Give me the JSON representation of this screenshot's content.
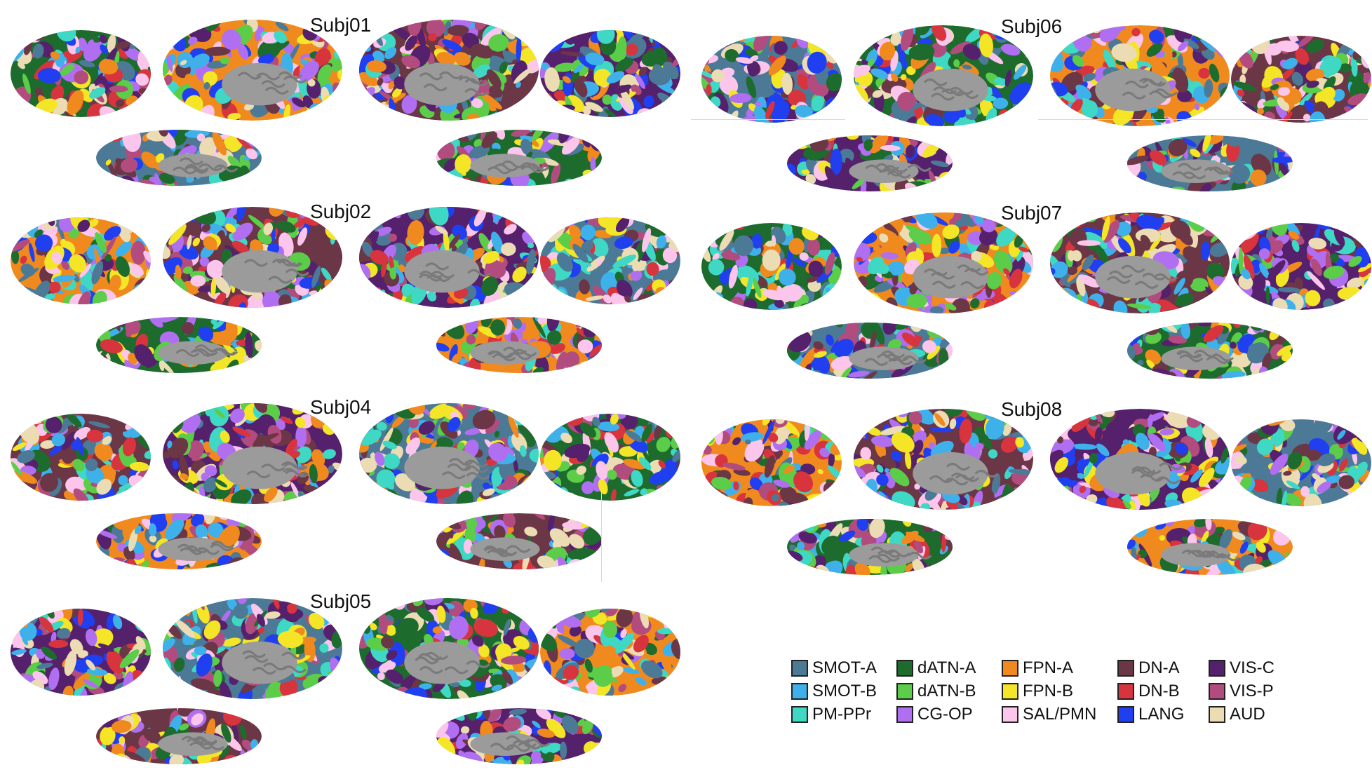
{
  "subjects": [
    "Subj01",
    "Subj02",
    "Subj04",
    "Subj05",
    "Subj06",
    "Subj07",
    "Subj08"
  ],
  "legend": [
    {
      "label": "SMOT-A",
      "color": "#4c7a96"
    },
    {
      "label": "SMOT-B",
      "color": "#3fb1ea"
    },
    {
      "label": "PM-PPr",
      "color": "#3ed8c4"
    },
    {
      "label": "dATN-A",
      "color": "#1e6b2e"
    },
    {
      "label": "dATN-B",
      "color": "#5ccd48"
    },
    {
      "label": "CG-OP",
      "color": "#b06ef0"
    },
    {
      "label": "FPN-A",
      "color": "#f08a1e"
    },
    {
      "label": "FPN-B",
      "color": "#f4e626"
    },
    {
      "label": "SAL/PMN",
      "color": "#fcc6ec"
    },
    {
      "label": "DN-A",
      "color": "#6b3646"
    },
    {
      "label": "DN-B",
      "color": "#d8343e"
    },
    {
      "label": "LANG",
      "color": "#1f3ff0"
    },
    {
      "label": "VIS-C",
      "color": "#55206c"
    },
    {
      "label": "VIS-P",
      "color": "#b24c7e"
    },
    {
      "label": "AUD",
      "color": "#ecdcb4"
    }
  ],
  "medial_wall_color": "#9b9b9b"
}
